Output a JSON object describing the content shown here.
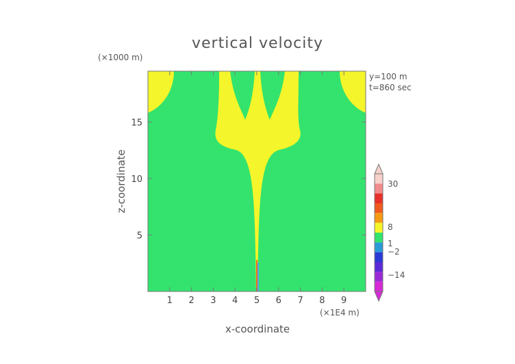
{
  "chart_data": {
    "type": "heatmap",
    "title": "vertical velocity",
    "xlabel": "x-coordinate",
    "ylabel": "z-coordinate",
    "x_units": "(×1E4 m)",
    "y_units": "(×1000 m)",
    "annotations": [
      "y=100 m",
      "t=860 sec"
    ],
    "xlim": [
      0,
      10
    ],
    "ylim": [
      0,
      19.5
    ],
    "x_ticks": [
      1,
      2,
      3,
      4,
      5,
      6,
      7,
      8,
      9
    ],
    "y_ticks": [
      5,
      10,
      15
    ],
    "field_colors": {
      "background": "#33e36e",
      "updraft": "#f4f52a",
      "core_high": "#f06a1e",
      "core_low": "#5aa6e6"
    },
    "colorbar": {
      "labels": [
        "30",
        "8",
        "1",
        "−2",
        "−14"
      ],
      "label_values": [
        30,
        8,
        1,
        -2,
        -14
      ],
      "segments": [
        {
          "color": "#f7d2ca"
        },
        {
          "color": "#f08c8c"
        },
        {
          "color": "#e8312a"
        },
        {
          "color": "#f05a1e"
        },
        {
          "color": "#f59a14"
        },
        {
          "color": "#f5f52a"
        },
        {
          "color": "#33e36e"
        },
        {
          "color": "#2a9ad6"
        },
        {
          "color": "#2a3ad6"
        },
        {
          "color": "#5a2ad6"
        },
        {
          "color": "#9a2ad6"
        },
        {
          "color": "#d62ad6"
        }
      ]
    }
  }
}
